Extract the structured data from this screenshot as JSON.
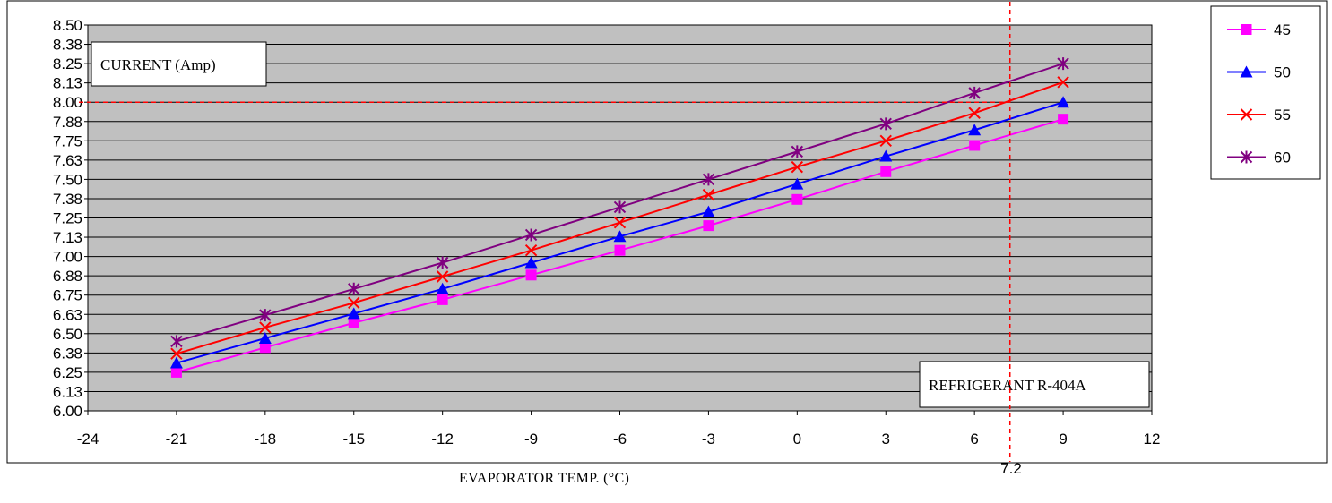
{
  "chart_data": {
    "type": "line",
    "ylabel": "CURRENT (Amp)",
    "xlabel": "EVAPORATOR TEMP. (°C)",
    "annotation": "REFRIGERANT R-404A",
    "ref_x_label": "7.2",
    "ref_x": 7.2,
    "ref_y": 8.0,
    "xlim": [
      -24,
      12
    ],
    "ylim": [
      6.0,
      8.5
    ],
    "x_ticks": [
      "-24",
      "-21",
      "-18",
      "-15",
      "-12",
      "-9",
      "-6",
      "-3",
      "0",
      "3",
      "6",
      "9",
      "12"
    ],
    "y_ticks": [
      "6.00",
      "6.13",
      "6.25",
      "6.38",
      "6.50",
      "6.63",
      "6.75",
      "6.88",
      "7.00",
      "7.13",
      "7.25",
      "7.38",
      "7.50",
      "7.63",
      "7.75",
      "7.88",
      "8.00",
      "8.13",
      "8.25",
      "8.38",
      "8.50"
    ],
    "grid": true,
    "legend_position": "right",
    "x": [
      -21,
      -18,
      -15,
      -12,
      -9,
      -6,
      -3,
      0,
      3,
      6,
      9
    ],
    "series": [
      {
        "name": "45",
        "color": "#ff00ff",
        "marker": "square",
        "values": [
          6.25,
          6.41,
          6.57,
          6.72,
          6.88,
          7.04,
          7.2,
          7.37,
          7.55,
          7.72,
          7.89
        ]
      },
      {
        "name": "50",
        "color": "#0000ff",
        "marker": "triangle",
        "values": [
          6.31,
          6.47,
          6.63,
          6.79,
          6.96,
          7.13,
          7.29,
          7.47,
          7.65,
          7.82,
          8.0
        ]
      },
      {
        "name": "55",
        "color": "#ff0000",
        "marker": "x",
        "values": [
          6.37,
          6.54,
          6.7,
          6.87,
          7.04,
          7.22,
          7.4,
          7.58,
          7.75,
          7.93,
          8.13
        ]
      },
      {
        "name": "60",
        "color": "#800080",
        "marker": "star",
        "values": [
          6.45,
          6.62,
          6.79,
          6.96,
          7.14,
          7.32,
          7.5,
          7.68,
          7.86,
          8.06,
          8.25
        ]
      }
    ],
    "colors": {
      "plot_background": "#c0c0c0",
      "reference_line": "#ff0000"
    }
  }
}
